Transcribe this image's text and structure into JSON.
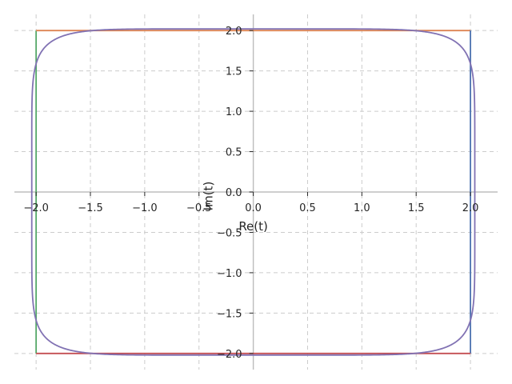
{
  "chart_data": {
    "type": "line",
    "title": "",
    "xlabel": "Re(t)",
    "ylabel": "Im(t)",
    "xlim": [
      -2.2,
      2.25
    ],
    "ylim": [
      -2.2,
      2.2
    ],
    "x_ticks": [
      -2.0,
      -1.5,
      -1.0,
      -0.5,
      0.0,
      0.5,
      1.0,
      1.5,
      2.0
    ],
    "x_tick_labels": [
      "−2.0",
      "−1.5",
      "−1.0",
      "−0.5",
      "0.0",
      "0.5",
      "1.0",
      "1.5",
      "2.0"
    ],
    "y_ticks": [
      2.0,
      1.5,
      1.0,
      0.5,
      0.0,
      -0.5,
      -1.0,
      -1.5,
      -2.0
    ],
    "y_tick_labels": [
      "2.0",
      "1.5",
      "1.0",
      "0.5",
      "0.0",
      "−0.5",
      "−1.0",
      "−1.5",
      "−2.0"
    ],
    "grid": true,
    "axes_through_origin": true,
    "series": [
      {
        "kind": "segment",
        "x": [
          -2.0,
          -2.0
        ],
        "y": [
          -2.0,
          2.0
        ],
        "color": "#55a868"
      },
      {
        "kind": "segment",
        "x": [
          -2.0,
          2.0
        ],
        "y": [
          2.0,
          2.0
        ],
        "color": "#dd8452"
      },
      {
        "kind": "segment",
        "x": [
          2.0,
          2.0
        ],
        "y": [
          2.0,
          -2.0
        ],
        "color": "#4c72b0"
      },
      {
        "kind": "segment",
        "x": [
          2.0,
          -2.0
        ],
        "y": [
          -2.0,
          -2.0
        ],
        "color": "#c44e52"
      },
      {
        "kind": "superellipse",
        "center": [
          0,
          0
        ],
        "radius_x": 2.04,
        "radius_y": 2.02,
        "exponent": 8,
        "color": "#8172b3"
      }
    ]
  }
}
